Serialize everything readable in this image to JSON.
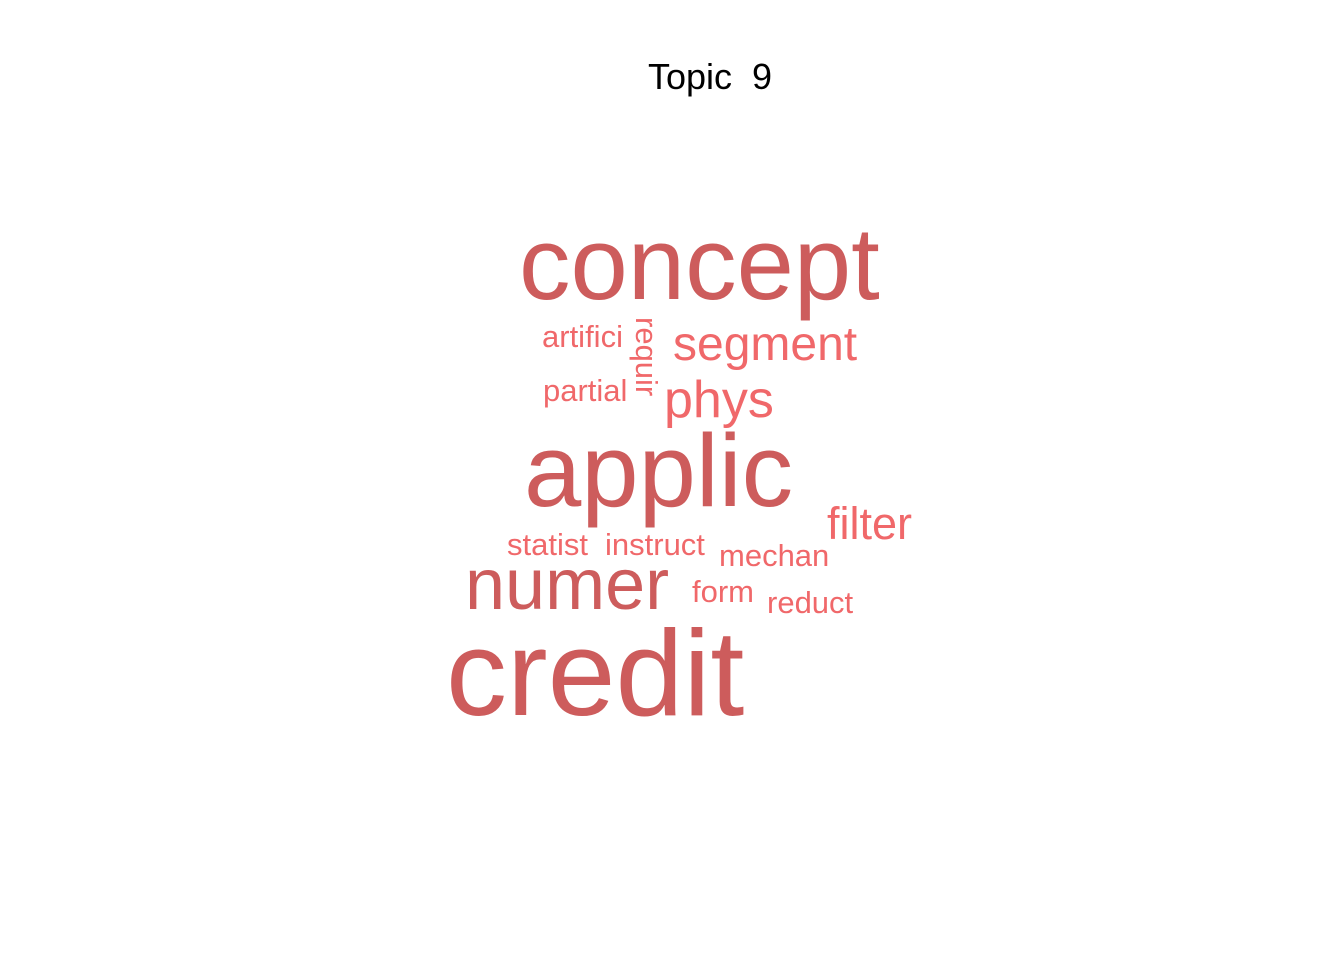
{
  "chart_data": {
    "type": "wordcloud",
    "title": "Topic  9",
    "colors": {
      "dark": "#cd5c5c",
      "light": "#f0686a"
    },
    "words": [
      {
        "text": "concept",
        "weight": 100,
        "tier": "dark",
        "rotated": false
      },
      {
        "text": "credit",
        "weight": 100,
        "tier": "dark",
        "rotated": false
      },
      {
        "text": "applic",
        "weight": 95,
        "tier": "dark",
        "rotated": false
      },
      {
        "text": "numer",
        "weight": 70,
        "tier": "dark",
        "rotated": false
      },
      {
        "text": "segment",
        "weight": 50,
        "tier": "light",
        "rotated": false
      },
      {
        "text": "phys",
        "weight": 50,
        "tier": "light",
        "rotated": false
      },
      {
        "text": "filter",
        "weight": 48,
        "tier": "light",
        "rotated": false
      },
      {
        "text": "artifici",
        "weight": 35,
        "tier": "light",
        "rotated": false
      },
      {
        "text": "partial",
        "weight": 35,
        "tier": "light",
        "rotated": false
      },
      {
        "text": "requir",
        "weight": 35,
        "tier": "light",
        "rotated": true
      },
      {
        "text": "statist",
        "weight": 33,
        "tier": "light",
        "rotated": false
      },
      {
        "text": "instruct",
        "weight": 33,
        "tier": "light",
        "rotated": false
      },
      {
        "text": "mechan",
        "weight": 32,
        "tier": "light",
        "rotated": false
      },
      {
        "text": "form",
        "weight": 32,
        "tier": "light",
        "rotated": false
      },
      {
        "text": "reduct",
        "weight": 32,
        "tier": "light",
        "rotated": false
      }
    ]
  }
}
